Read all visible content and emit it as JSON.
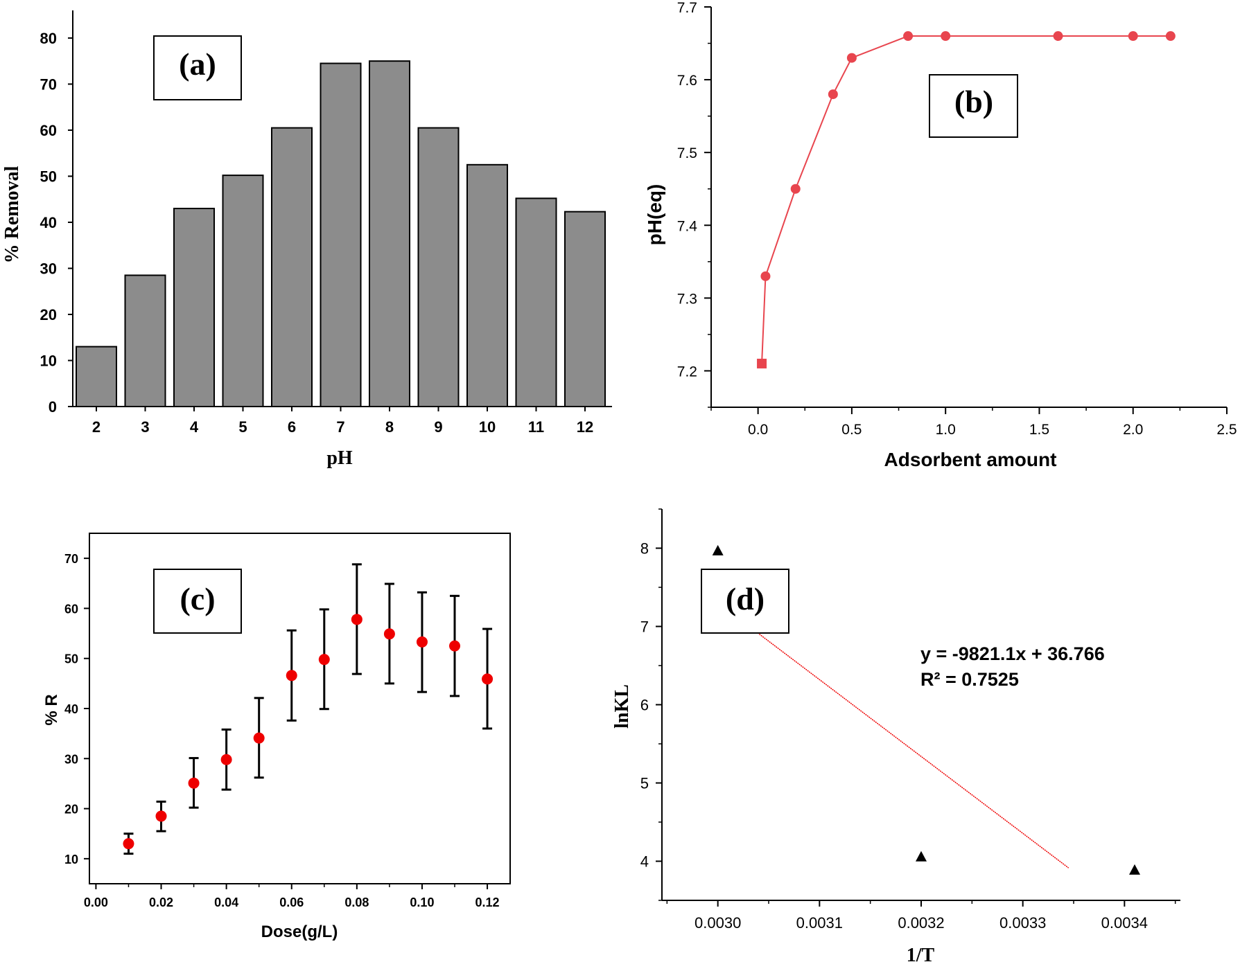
{
  "chart_data": [
    {
      "panel": "a",
      "type": "bar",
      "label": "(a)",
      "categories": [
        "2",
        "3",
        "4",
        "5",
        "6",
        "7",
        "8",
        "9",
        "10",
        "11",
        "12"
      ],
      "values": [
        13,
        28.5,
        43,
        50.2,
        60.5,
        74.5,
        75,
        60.5,
        52.5,
        45.2,
        42.3
      ],
      "xlabel": "pH",
      "ylabel": "% Removal",
      "ylim": [
        0,
        86
      ],
      "yticks": [
        0,
        10,
        20,
        30,
        40,
        50,
        60,
        70,
        80
      ],
      "bar_color": "#8c8c8c"
    },
    {
      "panel": "b",
      "type": "line",
      "label": "(b)",
      "x": [
        0.02,
        0.04,
        0.2,
        0.4,
        0.5,
        0.8,
        1.0,
        1.6,
        2.0,
        2.2
      ],
      "y": [
        7.21,
        7.33,
        7.45,
        7.58,
        7.63,
        7.66,
        7.66,
        7.66,
        7.66,
        7.66
      ],
      "xlabel": "Adsorbent amount",
      "ylabel": "pH(eq)",
      "xlim": [
        -0.25,
        2.5
      ],
      "ylim": [
        7.15,
        7.7
      ],
      "xticks": [
        "0.0",
        "0.5",
        "1.0",
        "1.5",
        "2.0",
        "2.5"
      ],
      "yticks": [
        "7.2",
        "7.3",
        "7.4",
        "7.5",
        "7.6",
        "7.7"
      ],
      "color": "#e8454e"
    },
    {
      "panel": "c",
      "type": "scatter",
      "label": "(c)",
      "x": [
        0.01,
        0.02,
        0.03,
        0.04,
        0.05,
        0.06,
        0.07,
        0.08,
        0.09,
        0.1,
        0.11,
        0.12
      ],
      "y": [
        13,
        18.5,
        25.1,
        29.8,
        34.1,
        46.6,
        49.8,
        57.8,
        54.9,
        53.3,
        52.5,
        45.9
      ],
      "err_low": [
        11,
        15.5,
        20.2,
        23.8,
        26.2,
        37.6,
        39.9,
        46.9,
        45,
        43.3,
        42.5,
        36
      ],
      "err_high": [
        15,
        21.4,
        30.1,
        35.8,
        42.1,
        55.6,
        59.8,
        68.8,
        64.9,
        63.2,
        62.5,
        55.9
      ],
      "xlabel": "Dose(g/L)",
      "ylabel": "% R",
      "xlim": [
        -0.002,
        0.127
      ],
      "ylim": [
        5,
        75
      ],
      "xticks": [
        "0.00",
        "0.02",
        "0.04",
        "0.06",
        "0.08",
        "0.10",
        "0.12"
      ],
      "yticks": [
        "10",
        "20",
        "30",
        "40",
        "50",
        "60",
        "70"
      ],
      "marker_color": "#ee0000"
    },
    {
      "panel": "d",
      "type": "scatter",
      "label": "(d)",
      "x": [
        0.003,
        0.0032,
        0.00341
      ],
      "y": [
        7.97,
        4.06,
        3.89
      ],
      "fit": {
        "slope": -9821.1,
        "intercept": 36.766,
        "x_range": [
          0.003,
          0.003345
        ]
      },
      "equation": "y = -9821.1x + 36.766",
      "r2": "R² = 0.7525",
      "xlabel": "1/T",
      "ylabel": "lnKL",
      "xlim": [
        0.002945,
        0.003455
      ],
      "ylim": [
        3.5,
        8.5
      ],
      "xticks": [
        "0.0030",
        "0.0031",
        "0.0032",
        "0.0033",
        "0.0034"
      ],
      "yticks": [
        "4",
        "5",
        "6",
        "7",
        "8"
      ],
      "fit_color": "#ee0000"
    }
  ]
}
